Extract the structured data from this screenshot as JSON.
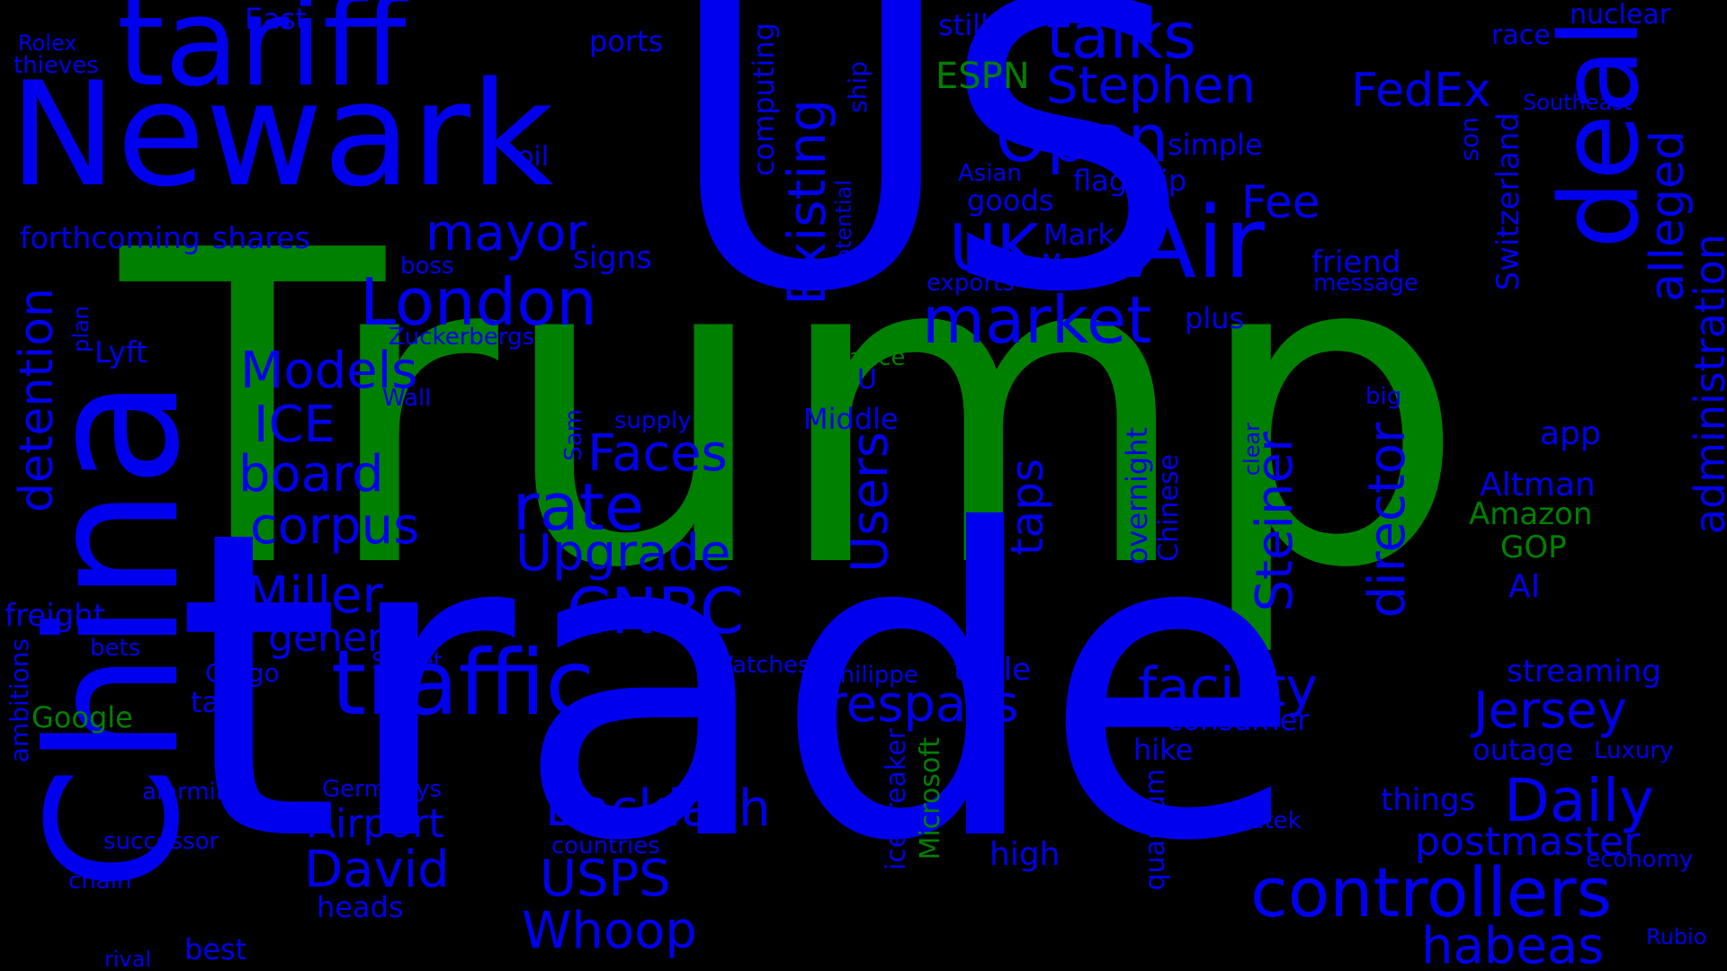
{
  "palette": {
    "background": "#000000",
    "blue": "#0000ee",
    "green": "#008000"
  },
  "words": {
    "trump": "Trump",
    "trade": "trade",
    "u": "U",
    "s": "S",
    "china": "China",
    "newark": "Newark",
    "tariff": "tariff",
    "deal": "deal",
    "air": "Air",
    "traffic": "traffic",
    "controllers": "controllers",
    "talks": "talks",
    "stephen": "Stephen",
    "open": "Open",
    "uk": "UK",
    "london": "London",
    "market": "market",
    "mayor": "mayor",
    "fedex": "FedEx",
    "fee": "Fee",
    "existing": "Existing",
    "alleged": "alleged",
    "administration": "administration",
    "detention": "detention",
    "models": "Models",
    "ice": "ICE",
    "board": "board",
    "corpus": "corpus",
    "miller": "Miller",
    "general": "general",
    "faces": "Faces",
    "rate": "rate",
    "upgrade": "Upgrade",
    "cnbc": "CNBC",
    "users": "Users",
    "steiner": "Steiner",
    "director": "director",
    "facility": "facility",
    "jersey": "Jersey",
    "daily": "Daily",
    "trespass": "trespass",
    "backlash": "Backlash",
    "usps": "USPS",
    "whoop": "Whoop",
    "habeas": "habeas",
    "david": "David",
    "airport": "Airport",
    "postmaster": "postmaster",
    "taps": "taps",
    "switzerland": "Switzerland",
    "signs": "signs",
    "friend": "friend",
    "forthcoming": "forthcoming",
    "shares": "shares",
    "computing": "computing",
    "potential": "potential",
    "ship": "ship",
    "east": "East",
    "ports": "ports",
    "still": "still",
    "espn": "ESPN",
    "nuclear": "nuclear",
    "race": "race",
    "southeast": "Southeast",
    "rolex": "Rolex",
    "thieves": "thieves",
    "oil": "oil",
    "simple": "simple",
    "son": "son",
    "asian": "Asian",
    "flagship": "flagship",
    "goods": "goods",
    "mark": "Mark",
    "marco": "Marco",
    "exports": "exports",
    "message": "message",
    "plus": "plus",
    "boss": "boss",
    "zuckerbergs": "Zuckerbergs",
    "plan": "plan",
    "lyft": "Lyft",
    "vance": "Vance",
    "u_small": "U",
    "wall": "Wall",
    "sam": "Sam",
    "supply": "supply",
    "middle": "Middle",
    "big": "big",
    "app": "app",
    "overnight": "overnight",
    "chinese": "Chinese",
    "clear": "clear",
    "altman": "Altman",
    "amazon": "Amazon",
    "gop": "GOP",
    "ai": "AI",
    "freight": "freight",
    "bets": "bets",
    "ambitions": "ambitions",
    "cargo": "Cargo",
    "street": "Street",
    "watches": "Watches",
    "philippe": "Philippe",
    "table": "table",
    "streaming": "streaming",
    "google": "Google",
    "tax": "tax",
    "consumer": "consumer",
    "hike": "hike",
    "outage": "outage",
    "luxury": "Luxury",
    "alarming": "alarming",
    "germanys": "Germanys",
    "icebreaker": "icebreaker",
    "microsoft": "Microsoft",
    "quantum": "quantum",
    "things": "things",
    "successor": "successor",
    "countries": "countries",
    "patek": "Patek",
    "economy": "economy",
    "high": "high",
    "chain": "chain",
    "heads": "heads",
    "best": "best",
    "rival": "rival",
    "rubio": "Rubio"
  }
}
